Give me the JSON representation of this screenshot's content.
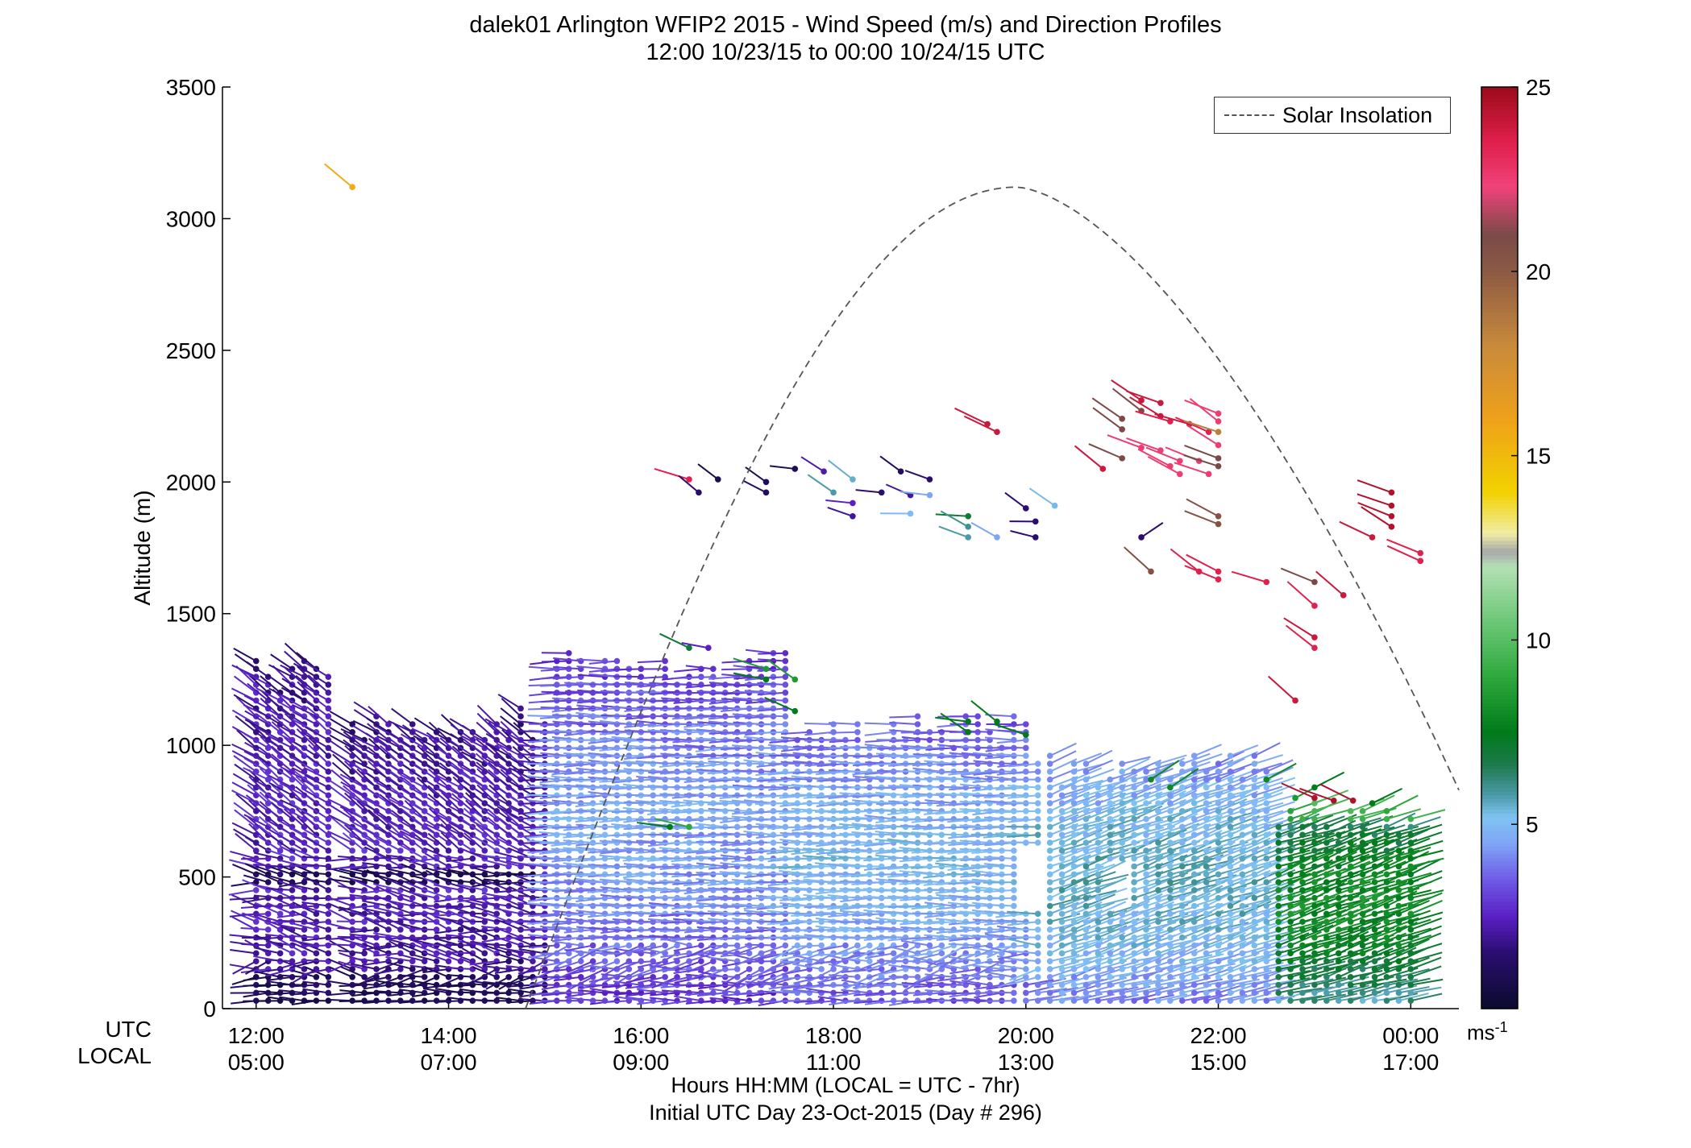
{
  "chart_data": {
    "type": "scatter",
    "subtype": "wind-barb profile",
    "title": "dalek01 Arlington WFIP2 2015 - Wind Speed (m/s) and Direction Profiles",
    "subtitle": "12:00 10/23/15 to 00:00 10/24/15  UTC",
    "ylabel": "Altitude (m)",
    "xlabel": "Hours HH:MM  (LOCAL = UTC - 7hr)",
    "footer": "Initial UTC Day 23-Oct-2015 (Day # 296)",
    "xlim": [
      11.65,
      24.5
    ],
    "ylim": [
      0,
      3500
    ],
    "yticks": [
      "0",
      "500",
      "1000",
      "1500",
      "2000",
      "2500",
      "3000",
      "3500"
    ],
    "x_row_labels": {
      "utc": "UTC",
      "local": "LOCAL"
    },
    "xticks_utc": [
      {
        "x": 12,
        "label": "12:00"
      },
      {
        "x": 14,
        "label": "14:00"
      },
      {
        "x": 16,
        "label": "16:00"
      },
      {
        "x": 18,
        "label": "18:00"
      },
      {
        "x": 20,
        "label": "20:00"
      },
      {
        "x": 22,
        "label": "22:00"
      },
      {
        "x": 24,
        "label": "00:00"
      }
    ],
    "xticks_local": [
      "05:00",
      "07:00",
      "09:00",
      "11:00",
      "13:00",
      "15:00",
      "17:00"
    ],
    "legend": {
      "label": "Solar Insolation",
      "position": "top-right",
      "style": "dashed"
    },
    "insolation_curve": {
      "start_x": 14.8,
      "peak_x": 19.9,
      "peak_y": 3120,
      "end_x": 24.5,
      "end_y": 830
    },
    "colorbar": {
      "ticks": [
        "5",
        "10",
        "15",
        "20",
        "25"
      ],
      "range": [
        0,
        25
      ],
      "unit": "ms",
      "unit_exp": "-1",
      "stops": [
        {
          "v": 0,
          "c": "#0b0b2e"
        },
        {
          "v": 1.5,
          "c": "#2a0d6e"
        },
        {
          "v": 2.5,
          "c": "#5a1fc4"
        },
        {
          "v": 3.5,
          "c": "#6e5ae6"
        },
        {
          "v": 4.5,
          "c": "#7fa6f5"
        },
        {
          "v": 5.2,
          "c": "#7fc3f2"
        },
        {
          "v": 5.8,
          "c": "#4b9aa8"
        },
        {
          "v": 6.6,
          "c": "#1f7a4e"
        },
        {
          "v": 7.5,
          "c": "#007a1a"
        },
        {
          "v": 9,
          "c": "#2ea83c"
        },
        {
          "v": 10.5,
          "c": "#6cc777"
        },
        {
          "v": 12,
          "c": "#b4e0b4"
        },
        {
          "v": 12.4,
          "c": "#a8a8a8"
        },
        {
          "v": 12.9,
          "c": "#f2eda6"
        },
        {
          "v": 14,
          "c": "#f2d200"
        },
        {
          "v": 16,
          "c": "#eea11a"
        },
        {
          "v": 18,
          "c": "#c98a3c"
        },
        {
          "v": 20,
          "c": "#8c5a44"
        },
        {
          "v": 21,
          "c": "#7b4a48"
        },
        {
          "v": 22.3,
          "c": "#f0437a"
        },
        {
          "v": 23.5,
          "c": "#e0204d"
        },
        {
          "v": 25,
          "c": "#9b0a1a"
        }
      ]
    },
    "profiles": [
      {
        "time_range": [
          12.0,
          12.8
        ],
        "height_range": [
          0,
          1330
        ],
        "speed_low": 1.5,
        "speed_high": 2.5,
        "dir_note": "west to northwest near surface, north above 500 m"
      },
      {
        "time_range": [
          12.8,
          15.0
        ],
        "height_range": [
          0,
          1150
        ],
        "speed_low": 1.0,
        "speed_high": 2.5,
        "dir_note": "mixed north / west"
      },
      {
        "time_range": [
          15.0,
          17.5
        ],
        "height_range": [
          0,
          1370
        ],
        "speed_low": 1.5,
        "speed_high": 4.5,
        "dir_note": "west"
      },
      {
        "time_range": [
          17.5,
          20.0
        ],
        "height_range": [
          0,
          1130
        ],
        "speed_low": 2.0,
        "speed_high": 5.0,
        "dir_note": "west"
      },
      {
        "time_range": [
          20.0,
          22.5
        ],
        "height_range": [
          0,
          980
        ],
        "speed_low": 3.0,
        "speed_high": 5.5,
        "dir_note": "southwest"
      },
      {
        "time_range": [
          22.5,
          24.2
        ],
        "height_range": [
          0,
          800
        ],
        "speed_low": 4.0,
        "speed_high": 8.0,
        "dir_note": "southwest"
      }
    ],
    "upper_points": [
      {
        "x": 13.0,
        "y": 3120,
        "speed": 15.5
      },
      {
        "x": 16.5,
        "y": 2010,
        "speed": 23.5
      },
      {
        "x": 16.6,
        "y": 1960,
        "speed": 1.5
      },
      {
        "x": 16.8,
        "y": 2010,
        "speed": 0.8
      },
      {
        "x": 17.3,
        "y": 2000,
        "speed": 1.0
      },
      {
        "x": 17.3,
        "y": 1960,
        "speed": 1.2
      },
      {
        "x": 17.6,
        "y": 2050,
        "speed": 0.9
      },
      {
        "x": 17.9,
        "y": 2040,
        "speed": 2.2
      },
      {
        "x": 18.0,
        "y": 1960,
        "speed": 5.8
      },
      {
        "x": 18.2,
        "y": 2010,
        "speed": 5.5
      },
      {
        "x": 18.2,
        "y": 1920,
        "speed": 2.5
      },
      {
        "x": 18.2,
        "y": 1870,
        "speed": 2.0
      },
      {
        "x": 18.5,
        "y": 1960,
        "speed": 1.5
      },
      {
        "x": 18.7,
        "y": 2040,
        "speed": 1.2
      },
      {
        "x": 18.8,
        "y": 1950,
        "speed": 2.0
      },
      {
        "x": 18.8,
        "y": 1880,
        "speed": 5.0
      },
      {
        "x": 19.0,
        "y": 2010,
        "speed": 1.5
      },
      {
        "x": 19.0,
        "y": 1950,
        "speed": 4.5
      },
      {
        "x": 19.4,
        "y": 1870,
        "speed": 7.0
      },
      {
        "x": 19.4,
        "y": 1830,
        "speed": 6.0
      },
      {
        "x": 19.4,
        "y": 1790,
        "speed": 5.8
      },
      {
        "x": 19.7,
        "y": 1790,
        "speed": 4.5
      },
      {
        "x": 19.6,
        "y": 2220,
        "speed": 24.0
      },
      {
        "x": 19.7,
        "y": 2190,
        "speed": 24.0
      },
      {
        "x": 20.0,
        "y": 1900,
        "speed": 1.5
      },
      {
        "x": 20.1,
        "y": 1850,
        "speed": 1.5
      },
      {
        "x": 20.1,
        "y": 1790,
        "speed": 1.5
      },
      {
        "x": 20.3,
        "y": 1910,
        "speed": 5.3
      },
      {
        "x": 20.8,
        "y": 2050,
        "speed": 24.0
      },
      {
        "x": 21.0,
        "y": 2240,
        "speed": 21.0
      },
      {
        "x": 21.0,
        "y": 2200,
        "speed": 21.0
      },
      {
        "x": 21.0,
        "y": 2090,
        "speed": 21.0
      },
      {
        "x": 21.2,
        "y": 2310,
        "speed": 24.0
      },
      {
        "x": 21.4,
        "y": 2300,
        "speed": 24.0
      },
      {
        "x": 21.2,
        "y": 2270,
        "speed": 21.0
      },
      {
        "x": 21.2,
        "y": 2130,
        "speed": 22.5
      },
      {
        "x": 21.4,
        "y": 2250,
        "speed": 24.0
      },
      {
        "x": 21.4,
        "y": 2120,
        "speed": 22.5
      },
      {
        "x": 21.5,
        "y": 2230,
        "speed": 23.5
      },
      {
        "x": 21.5,
        "y": 2060,
        "speed": 22.5
      },
      {
        "x": 21.6,
        "y": 2080,
        "speed": 22.5
      },
      {
        "x": 21.6,
        "y": 2030,
        "speed": 22.5
      },
      {
        "x": 21.7,
        "y": 2220,
        "speed": 24.0
      },
      {
        "x": 21.8,
        "y": 2080,
        "speed": 22.5
      },
      {
        "x": 21.9,
        "y": 2190,
        "speed": 23.5
      },
      {
        "x": 21.9,
        "y": 2030,
        "speed": 22.5
      },
      {
        "x": 22.0,
        "y": 2260,
        "speed": 22.5
      },
      {
        "x": 22.0,
        "y": 2230,
        "speed": 22.5
      },
      {
        "x": 22.0,
        "y": 2190,
        "speed": 18.5
      },
      {
        "x": 22.0,
        "y": 2140,
        "speed": 22.5
      },
      {
        "x": 22.0,
        "y": 2090,
        "speed": 21.0
      },
      {
        "x": 22.0,
        "y": 2060,
        "speed": 21.0
      },
      {
        "x": 22.0,
        "y": 1870,
        "speed": 20.5
      },
      {
        "x": 22.0,
        "y": 1840,
        "speed": 20.5
      },
      {
        "x": 21.2,
        "y": 1790,
        "speed": 1.5
      },
      {
        "x": 21.3,
        "y": 1660,
        "speed": 20.5
      },
      {
        "x": 21.8,
        "y": 1660,
        "speed": 23.5
      },
      {
        "x": 22.0,
        "y": 1660,
        "speed": 23.5
      },
      {
        "x": 22.0,
        "y": 1630,
        "speed": 23.5
      },
      {
        "x": 22.5,
        "y": 1620,
        "speed": 23.5
      },
      {
        "x": 23.0,
        "y": 1620,
        "speed": 21.0
      },
      {
        "x": 23.0,
        "y": 1530,
        "speed": 23.5
      },
      {
        "x": 23.3,
        "y": 1570,
        "speed": 24.0
      },
      {
        "x": 23.0,
        "y": 1410,
        "speed": 24.0
      },
      {
        "x": 23.0,
        "y": 1370,
        "speed": 23.5
      },
      {
        "x": 22.8,
        "y": 1170,
        "speed": 24.0
      },
      {
        "x": 23.6,
        "y": 1790,
        "speed": 24.0
      },
      {
        "x": 23.8,
        "y": 1960,
        "speed": 24.5
      },
      {
        "x": 23.8,
        "y": 1910,
        "speed": 24.5
      },
      {
        "x": 23.8,
        "y": 1870,
        "speed": 24.5
      },
      {
        "x": 23.8,
        "y": 1830,
        "speed": 24.5
      },
      {
        "x": 24.1,
        "y": 1730,
        "speed": 23.5
      },
      {
        "x": 24.1,
        "y": 1700,
        "speed": 23.5
      },
      {
        "x": 16.5,
        "y": 1370,
        "speed": 7.0
      },
      {
        "x": 16.7,
        "y": 1370,
        "speed": 2.5
      },
      {
        "x": 17.3,
        "y": 1290,
        "speed": 8.5
      },
      {
        "x": 17.3,
        "y": 1250,
        "speed": 7.5
      },
      {
        "x": 17.6,
        "y": 1250,
        "speed": 8.5
      },
      {
        "x": 17.6,
        "y": 1130,
        "speed": 7.5
      },
      {
        "x": 19.4,
        "y": 1090,
        "speed": 7.5
      },
      {
        "x": 19.4,
        "y": 1050,
        "speed": 7.5
      },
      {
        "x": 19.7,
        "y": 1090,
        "speed": 7.5
      },
      {
        "x": 20.0,
        "y": 1040,
        "speed": 7.5
      },
      {
        "x": 21.3,
        "y": 870,
        "speed": 8.0
      },
      {
        "x": 21.5,
        "y": 840,
        "speed": 8.0
      },
      {
        "x": 22.5,
        "y": 870,
        "speed": 8.0
      },
      {
        "x": 22.8,
        "y": 800,
        "speed": 8.5
      },
      {
        "x": 23.0,
        "y": 840,
        "speed": 7.5
      },
      {
        "x": 23.0,
        "y": 800,
        "speed": 24.5
      },
      {
        "x": 23.2,
        "y": 790,
        "speed": 24.5
      },
      {
        "x": 23.4,
        "y": 790,
        "speed": 24.5
      },
      {
        "x": 23.6,
        "y": 780,
        "speed": 7.5
      },
      {
        "x": 16.3,
        "y": 690,
        "speed": 7.5
      },
      {
        "x": 16.5,
        "y": 690,
        "speed": 9.0
      }
    ]
  }
}
